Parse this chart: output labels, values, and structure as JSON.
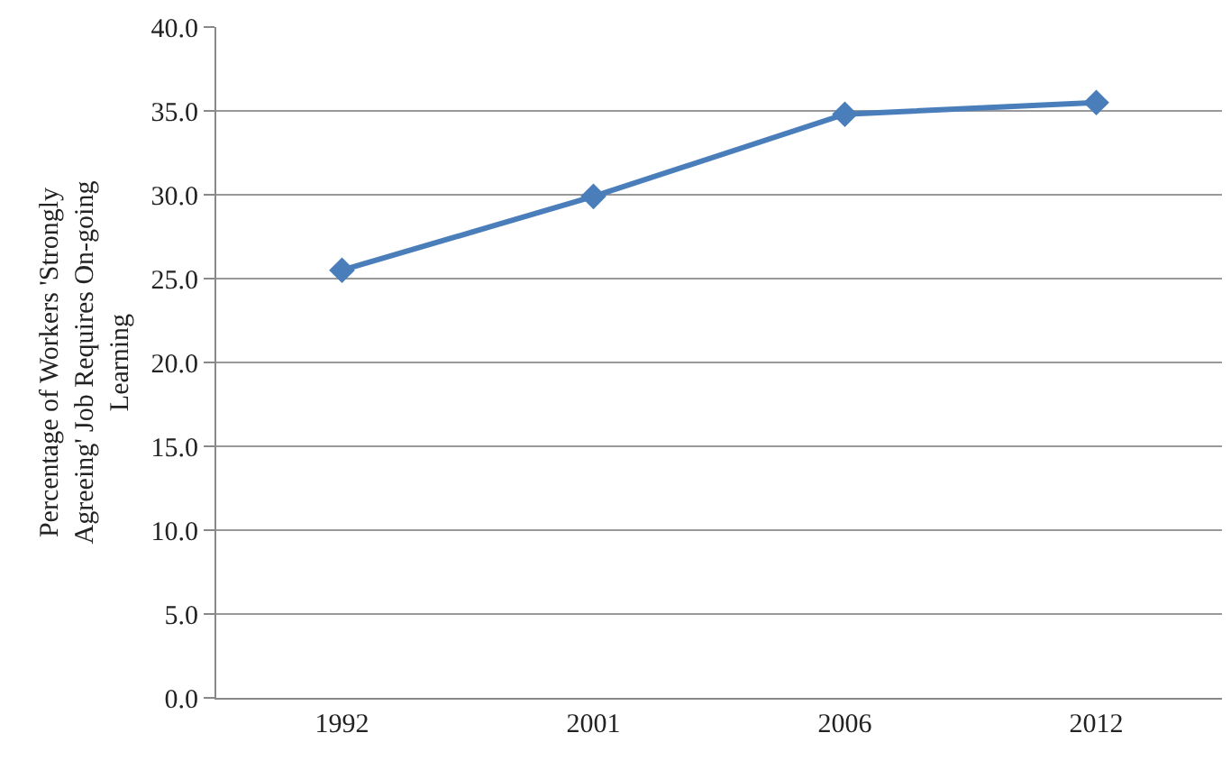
{
  "chart_data": {
    "type": "line",
    "ylabel": "Percentage of Workers 'Strongly Agreeing' Job Requires On-going Learning",
    "categories": [
      "1992",
      "2001",
      "2006",
      "2012"
    ],
    "series": [
      {
        "color": "#4a7ebb",
        "values": [
          25.5,
          29.9,
          34.8,
          35.5
        ]
      }
    ],
    "ylim": [
      0,
      40
    ],
    "yticks": [
      {
        "value": 0,
        "label": "0.0"
      },
      {
        "value": 5,
        "label": "5.0"
      },
      {
        "value": 10,
        "label": "10.0"
      },
      {
        "value": 15,
        "label": "15.0"
      },
      {
        "value": 20,
        "label": "20.0"
      },
      {
        "value": 25,
        "label": "25.0"
      },
      {
        "value": 30,
        "label": "30.0"
      },
      {
        "value": 35,
        "label": "35.0"
      },
      {
        "value": 40,
        "label": "40.0"
      }
    ],
    "grid": "y",
    "marker": "diamond",
    "line_style": "solid"
  }
}
